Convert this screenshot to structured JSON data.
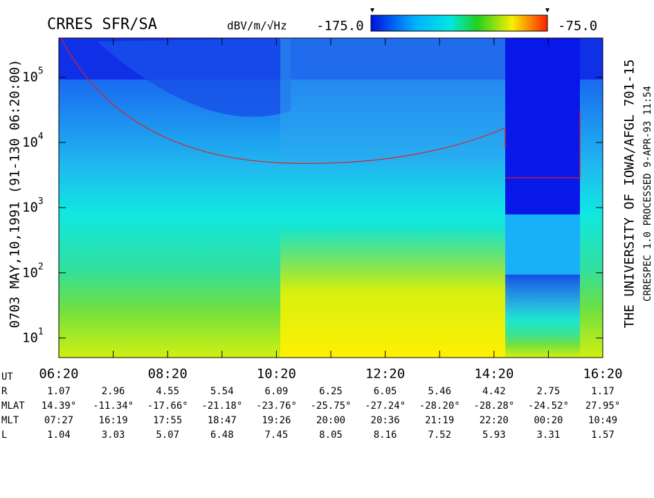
{
  "chart_data": {
    "type": "spectrogram",
    "title": "CRRES SFR/SA",
    "colorbar": {
      "units": "dBV/m/√Hz",
      "min_label": "-175.0",
      "max_label": "-75.0"
    },
    "left_label": "0703   MAY,10,1991   (91-130 06:20:00)",
    "right_label": "THE UNIVERSITY OF IOWA/AFGL 701-15",
    "right_sublabel": "CRRESPEC 1.0   PROCESSED   9-APR-93   11:54",
    "log_y": true,
    "ylim": [
      5,
      400000
    ],
    "yticks": [
      {
        "value": 10,
        "label": "10",
        "exponent": "1"
      },
      {
        "value": 100,
        "label": "10",
        "exponent": "2"
      },
      {
        "value": 1000,
        "label": "10",
        "exponent": "3"
      },
      {
        "value": 10000,
        "label": "10",
        "exponent": "4"
      },
      {
        "value": 100000,
        "label": "10",
        "exponent": "5"
      }
    ],
    "x_axis_label": "UT",
    "categories": [
      "06:20",
      null,
      "08:20",
      null,
      "10:20",
      null,
      "12:20",
      null,
      "14:20",
      null,
      "16:20"
    ],
    "ephemeris": [
      {
        "name": "R",
        "values": [
          "1.07",
          "2.96",
          "4.55",
          "5.54",
          "6.09",
          "6.25",
          "6.05",
          "5.46",
          "4.42",
          "2.75",
          "1.17"
        ]
      },
      {
        "name": "MLAT",
        "values": [
          "14.39°",
          "-11.34°",
          "-17.66°",
          "-21.18°",
          "-23.76°",
          "-25.75°",
          "-27.24°",
          "-28.20°",
          "-28.28°",
          "-24.52°",
          "27.95°"
        ]
      },
      {
        "name": "MLT",
        "values": [
          "07:27",
          "16:19",
          "17:55",
          "18:47",
          "19:26",
          "20:00",
          "20:36",
          "21:19",
          "22:20",
          "00:20",
          "10:49"
        ]
      },
      {
        "name": "L",
        "values": [
          "1.04",
          "3.03",
          "5.07",
          "6.48",
          "7.45",
          "8.05",
          "8.16",
          "7.52",
          "5.93",
          "3.31",
          "1.57"
        ]
      }
    ]
  }
}
